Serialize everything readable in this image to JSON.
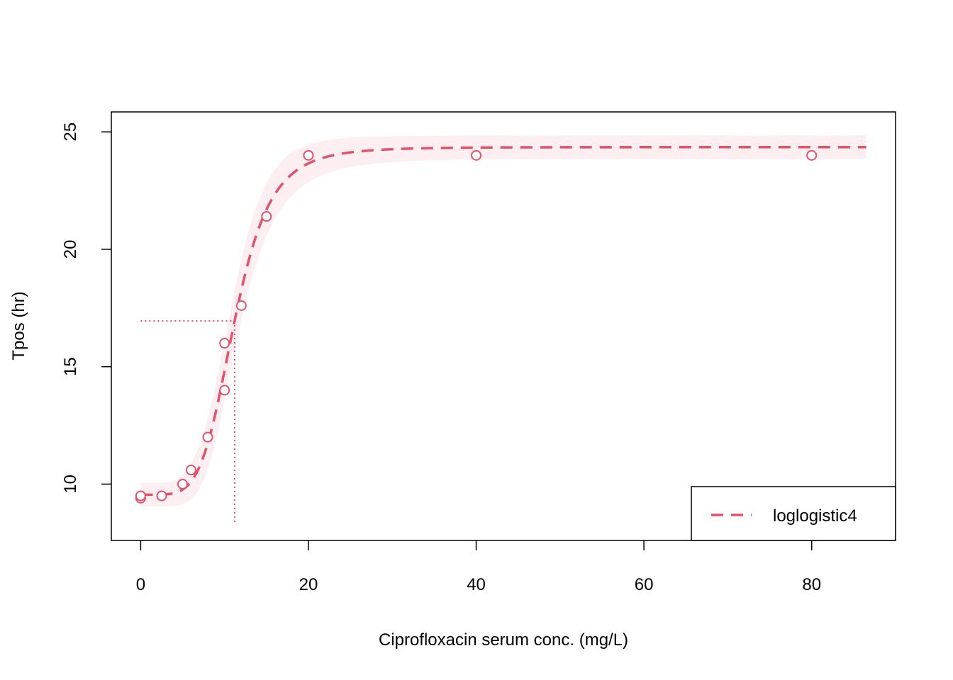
{
  "chart_data": {
    "type": "line",
    "title": "",
    "xlabel": "Ciprofloxacin serum conc. (mg/L)",
    "ylabel": "Tpos (hr)",
    "xlim": [
      -3.5,
      90
    ],
    "ylim": [
      7.6,
      25.85
    ],
    "x_ticks": [
      0,
      20,
      40,
      60,
      80
    ],
    "x_tick_labels": [
      "0",
      "20",
      "40",
      "60",
      "80"
    ],
    "y_ticks": [
      10,
      15,
      20,
      25
    ],
    "y_tick_labels": [
      "10",
      "15",
      "20",
      "25"
    ],
    "grid": false,
    "legend_position": "bottom-right",
    "colors": {
      "series": "#DF536B",
      "band": "#FCEEF1",
      "axis": "#000000"
    },
    "series": [
      {
        "name": "loglogistic4",
        "kind": "fitted-curve",
        "line_style": "dashed",
        "model": {
          "type": "log-logistic-4",
          "lower": 9.55,
          "upper": 24.35,
          "ec50": 11.2,
          "slope": 5.2
        },
        "x_range": [
          0,
          86.5
        ]
      },
      {
        "name": "",
        "kind": "observations",
        "points": [
          {
            "x": 0,
            "y": 9.4
          },
          {
            "x": 0,
            "y": 9.5
          },
          {
            "x": 2.5,
            "y": 9.5
          },
          {
            "x": 5,
            "y": 10.0
          },
          {
            "x": 6,
            "y": 10.6
          },
          {
            "x": 8,
            "y": 12.0
          },
          {
            "x": 10,
            "y": 14.0
          },
          {
            "x": 10,
            "y": 16.0
          },
          {
            "x": 12,
            "y": 17.6
          },
          {
            "x": 15,
            "y": 21.4
          },
          {
            "x": 20,
            "y": 24.0
          },
          {
            "x": 40,
            "y": 24.0
          },
          {
            "x": 80,
            "y": 24.0
          }
        ]
      }
    ],
    "confidence_band": {
      "x_range": [
        0,
        86.5
      ],
      "half_width_at_ends": 0.5,
      "half_width_at_ec50": 1.3
    },
    "annotation_lines": {
      "ec50_x": 11.2,
      "ec50_y": 16.95,
      "x_start": 0,
      "y_bottom": 8.35,
      "style": "dotted"
    }
  }
}
